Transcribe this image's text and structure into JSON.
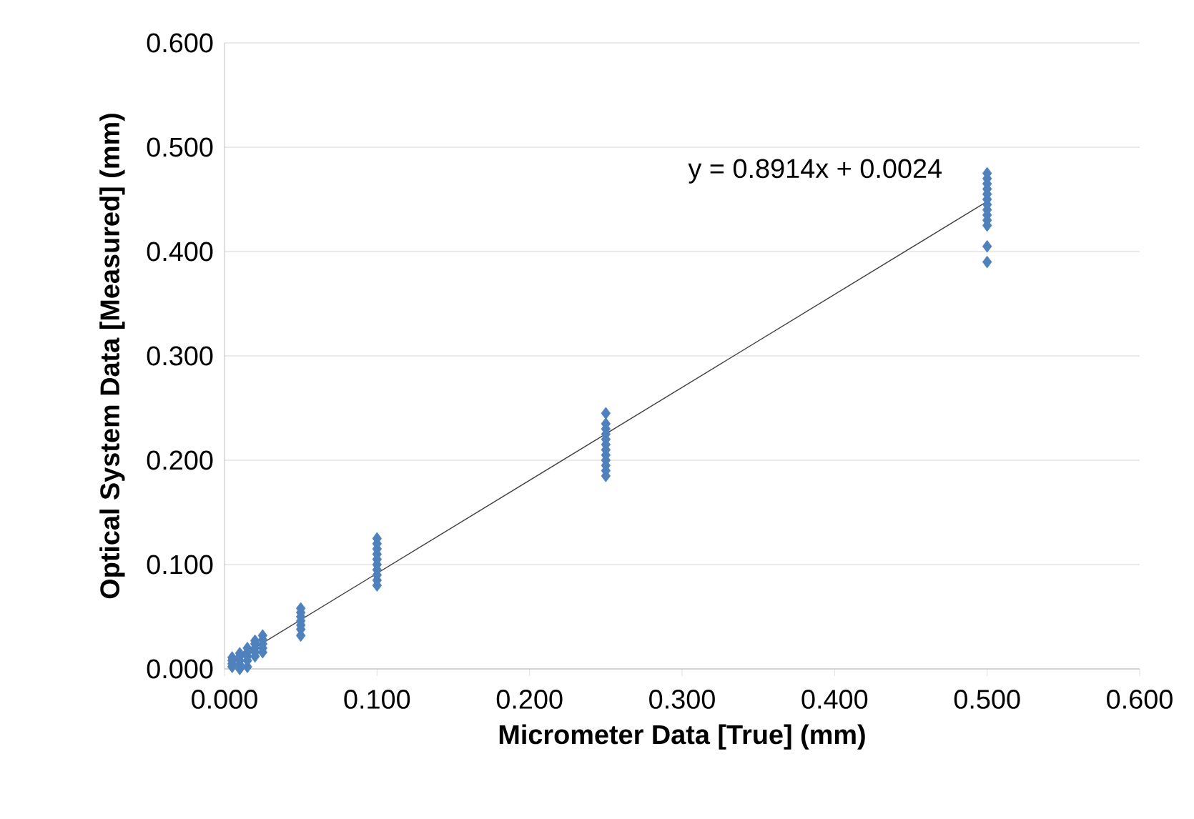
{
  "chart_data": {
    "type": "scatter",
    "xlabel": "Micrometer Data [True] (mm)",
    "ylabel": "Optical System Data [Measured] (mm)",
    "xlim": [
      0,
      0.6
    ],
    "ylim": [
      0,
      0.6
    ],
    "xticks": [
      {
        "value": 0,
        "label": "0.000"
      },
      {
        "value": 0.1,
        "label": "0.100"
      },
      {
        "value": 0.2,
        "label": "0.200"
      },
      {
        "value": 0.3,
        "label": "0.300"
      },
      {
        "value": 0.4,
        "label": "0.400"
      },
      {
        "value": 0.5,
        "label": "0.500"
      },
      {
        "value": 0.6,
        "label": "0.600"
      }
    ],
    "yticks": [
      {
        "value": 0,
        "label": "0.000"
      },
      {
        "value": 0.1,
        "label": "0.100"
      },
      {
        "value": 0.2,
        "label": "0.200"
      },
      {
        "value": 0.3,
        "label": "0.300"
      },
      {
        "value": 0.4,
        "label": "0.400"
      },
      {
        "value": 0.5,
        "label": "0.500"
      },
      {
        "value": 0.6,
        "label": "0.600"
      }
    ],
    "grid": "y",
    "annotations": [
      "y = 0.8914x + 0.0024"
    ],
    "series": [
      {
        "marker": "diamond",
        "color": "#4f81bd",
        "x": [
          0.005,
          0.005,
          0.005,
          0.005,
          0.01,
          0.01,
          0.01,
          0.01,
          0.01,
          0.015,
          0.015,
          0.015,
          0.015,
          0.015,
          0.02,
          0.02,
          0.02,
          0.02,
          0.02,
          0.025,
          0.025,
          0.025,
          0.025,
          0.025,
          0.05,
          0.05,
          0.05,
          0.05,
          0.05,
          0.05,
          0.05,
          0.1,
          0.1,
          0.1,
          0.1,
          0.1,
          0.1,
          0.1,
          0.1,
          0.1,
          0.1,
          0.25,
          0.25,
          0.25,
          0.25,
          0.25,
          0.25,
          0.25,
          0.25,
          0.25,
          0.25,
          0.25,
          0.25,
          0.5,
          0.5,
          0.5,
          0.5,
          0.5,
          0.5,
          0.5,
          0.5,
          0.5,
          0.5,
          0.5,
          0.5,
          0.5
        ],
        "values": [
          0.002,
          0.005,
          0.008,
          0.011,
          0.0,
          0.004,
          0.008,
          0.012,
          0.015,
          0.002,
          0.008,
          0.012,
          0.016,
          0.02,
          0.012,
          0.016,
          0.02,
          0.024,
          0.027,
          0.016,
          0.02,
          0.024,
          0.028,
          0.032,
          0.032,
          0.038,
          0.042,
          0.046,
          0.05,
          0.054,
          0.058,
          0.08,
          0.085,
          0.09,
          0.095,
          0.1,
          0.105,
          0.11,
          0.115,
          0.12,
          0.125,
          0.185,
          0.19,
          0.195,
          0.2,
          0.205,
          0.21,
          0.215,
          0.22,
          0.225,
          0.23,
          0.235,
          0.245,
          0.39,
          0.405,
          0.425,
          0.43,
          0.435,
          0.44,
          0.445,
          0.45,
          0.455,
          0.46,
          0.465,
          0.47,
          0.475
        ]
      },
      {
        "type": "line",
        "marker": "none",
        "color": "#404040",
        "line_style": "solid",
        "x": [
          0.005,
          0.5
        ],
        "values": [
          0.007,
          0.448
        ]
      }
    ]
  }
}
